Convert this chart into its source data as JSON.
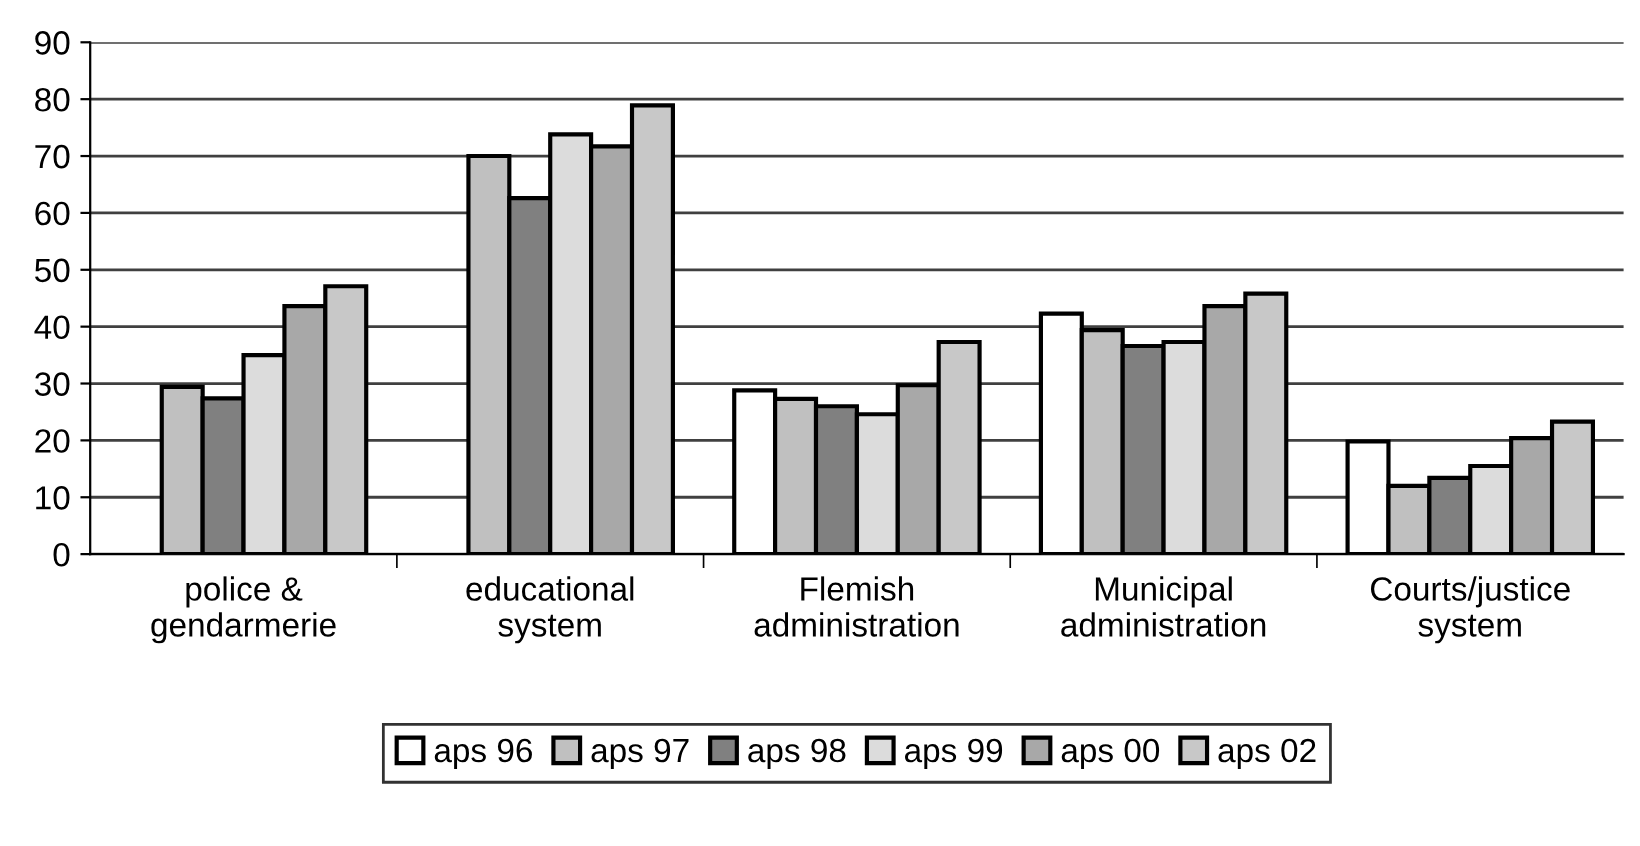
{
  "chart_data": {
    "type": "bar",
    "categories": [
      "police &\ngendarmerie",
      "educational\nsystem",
      "Flemish\nadministration",
      "Municipal\nadministration",
      "Courts/justice\nsystem"
    ],
    "series": [
      {
        "name": "aps 96",
        "color": "#ffffff",
        "values": [
          null,
          null,
          28.8,
          42.3,
          19.8
        ]
      },
      {
        "name": "aps 97",
        "color": "#c0c0c0",
        "values": [
          29.4,
          70.0,
          27.3,
          39.4,
          12.0
        ]
      },
      {
        "name": "aps 98",
        "color": "#808080",
        "values": [
          27.4,
          62.6,
          26.0,
          36.6,
          13.4
        ]
      },
      {
        "name": "aps 99",
        "color": "#dcdcdc",
        "values": [
          35.0,
          73.8,
          24.6,
          37.3,
          15.5
        ]
      },
      {
        "name": "aps 00",
        "color": "#a8a8a8",
        "values": [
          43.6,
          71.7,
          29.7,
          43.6,
          20.4
        ]
      },
      {
        "name": "aps 02",
        "color": "#c8c8c8",
        "values": [
          47.1,
          78.9,
          37.3,
          45.8,
          23.3
        ]
      }
    ],
    "ylim": [
      0,
      90
    ],
    "yticks": [
      0,
      10,
      20,
      30,
      40,
      50,
      60,
      70,
      80,
      90
    ],
    "grid": "y",
    "legend": "bottom"
  }
}
